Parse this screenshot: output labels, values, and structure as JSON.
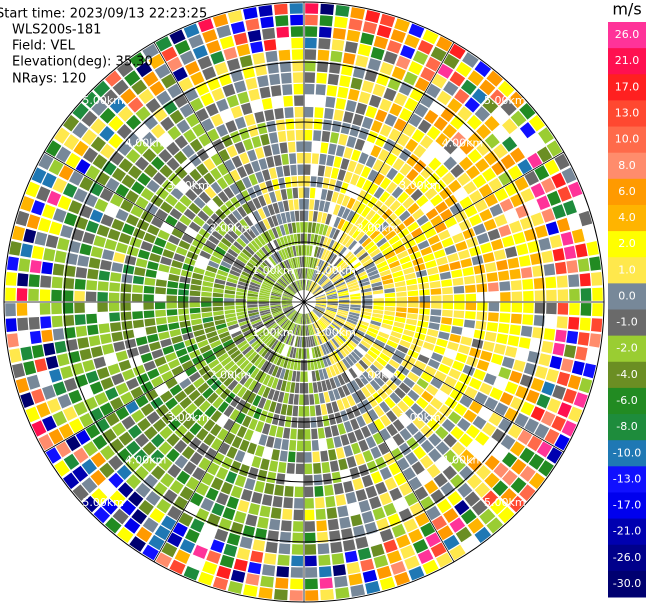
{
  "info": {
    "start_time": "Start time: 2023/09/13 22:23:25",
    "instrument": "WLS200s-181",
    "field": "Field: VEL",
    "elevation": "Elevation(deg): 35.30",
    "nrays": "NRays: 120"
  },
  "range_rings": [
    "1.00km",
    "2.00km",
    "3.00km",
    "4.00km",
    "5.00km"
  ],
  "colorbar": {
    "unit": "m/s",
    "levels": [
      {
        "label": "26.0",
        "color": "#ff3399"
      },
      {
        "label": "21.0",
        "color": "#ff1050"
      },
      {
        "label": "17.0",
        "color": "#ff2020"
      },
      {
        "label": "13.0",
        "color": "#ff4830"
      },
      {
        "label": "10.0",
        "color": "#ff6a4a"
      },
      {
        "label": "8.0",
        "color": "#ff8c6c"
      },
      {
        "label": "6.0",
        "color": "#ff9a00"
      },
      {
        "label": "4.0",
        "color": "#ffb400"
      },
      {
        "label": "2.0",
        "color": "#ffff00"
      },
      {
        "label": "1.0",
        "color": "#ffe84c"
      },
      {
        "label": "0.0",
        "color": "#778899"
      },
      {
        "label": "-1.0",
        "color": "#6a6a6a"
      },
      {
        "label": "-2.0",
        "color": "#9acd32"
      },
      {
        "label": "-4.0",
        "color": "#6b8e23"
      },
      {
        "label": "-6.0",
        "color": "#228b22"
      },
      {
        "label": "-8.0",
        "color": "#1e8c3c"
      },
      {
        "label": "-10.0",
        "color": "#1f78b4"
      },
      {
        "label": "-13.0",
        "color": "#1010ff"
      },
      {
        "label": "-17.0",
        "color": "#0000ee"
      },
      {
        "label": "-21.0",
        "color": "#0000b0"
      },
      {
        "label": "-26.0",
        "color": "#00008b"
      },
      {
        "label": "-30.0",
        "color": "#000070"
      }
    ]
  }
}
